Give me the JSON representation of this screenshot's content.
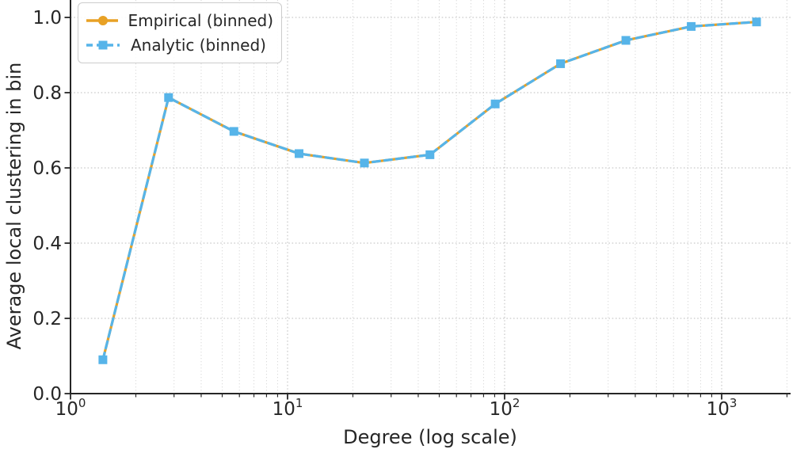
{
  "colors": {
    "background": "#ffffff",
    "text": "#262626",
    "axis": "#262626",
    "grid_major": "#c9c9c9",
    "grid_minor": "#d9d9d9",
    "legend_border": "#cccccc",
    "empirical_orange": "#E8A125",
    "analytic_blue": "#56B4E9"
  },
  "chart_data": {
    "type": "line",
    "title": "",
    "xlabel": "Degree (log scale)",
    "ylabel": "Average local clustering in bin",
    "x_scale": "log",
    "y_scale": "linear",
    "xlim": [
      1,
      2100
    ],
    "ylim": [
      0.0,
      1.05
    ],
    "grid": true,
    "grid_style": "dotted",
    "legend_position": "upper left",
    "x": [
      1.41,
      2.83,
      5.66,
      11.3,
      22.6,
      45.3,
      90.5,
      181,
      362,
      724,
      1448
    ],
    "series": [
      {
        "name": "Empirical (binned)",
        "color": "#E8A125",
        "line_style": "solid",
        "marker": "circle",
        "values": [
          0.09,
          0.787,
          0.697,
          0.638,
          0.613,
          0.635,
          0.77,
          0.877,
          0.939,
          0.976,
          0.988
        ]
      },
      {
        "name": "Analytic (binned)",
        "color": "#56B4E9",
        "line_style": "dashed",
        "marker": "square",
        "values": [
          0.09,
          0.787,
          0.697,
          0.638,
          0.613,
          0.635,
          0.77,
          0.877,
          0.939,
          0.976,
          0.988
        ]
      }
    ],
    "x_ticks": [
      {
        "base": "10",
        "exp": "0",
        "value": 1
      },
      {
        "base": "10",
        "exp": "1",
        "value": 10
      },
      {
        "base": "10",
        "exp": "2",
        "value": 100
      },
      {
        "base": "10",
        "exp": "3",
        "value": 1000
      }
    ],
    "y_ticks": [
      {
        "label": "0.0",
        "value": 0.0
      },
      {
        "label": "0.2",
        "value": 0.2
      },
      {
        "label": "0.4",
        "value": 0.4
      },
      {
        "label": "0.6",
        "value": 0.6
      },
      {
        "label": "0.8",
        "value": 0.8
      },
      {
        "label": "1.0",
        "value": 1.0
      }
    ]
  }
}
